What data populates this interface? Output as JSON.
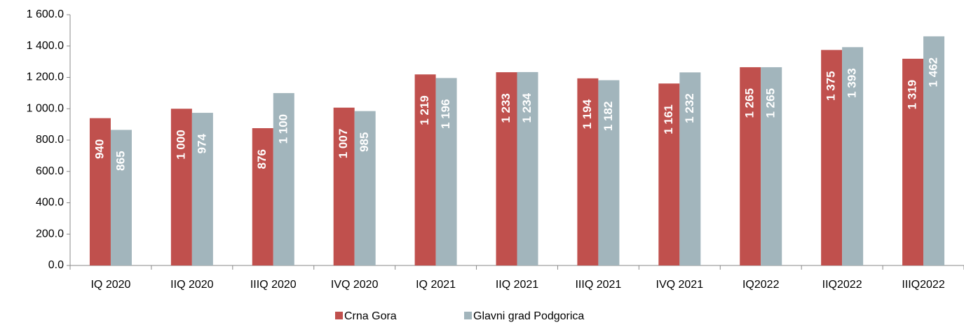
{
  "chart_data": {
    "type": "bar",
    "categories": [
      "IQ 2020",
      "IIQ 2020",
      "IIIQ 2020",
      "IVQ 2020",
      "IQ 2021",
      "IIQ 2021",
      "IIIQ 2021",
      "IVQ 2021",
      "IQ2022",
      "IIQ2022",
      "IIIQ2022"
    ],
    "series": [
      {
        "name": "Crna Gora",
        "color": "#c0504d",
        "values": [
          940,
          1000,
          876,
          1007,
          1219,
          1233,
          1194,
          1161,
          1265,
          1375,
          1319
        ],
        "value_labels": [
          "940",
          "1 000",
          "876",
          "1 007",
          "1 219",
          "1 233",
          "1 194",
          "1 161",
          "1 265",
          "1 375",
          "1 319"
        ]
      },
      {
        "name": "Glavni grad Podgorica",
        "color": "#a2b5bc",
        "values": [
          865,
          974,
          1100,
          985,
          1196,
          1234,
          1182,
          1232,
          1265,
          1393,
          1462
        ],
        "value_labels": [
          "865",
          "974",
          "1 100",
          "985",
          "1 196",
          "1 234",
          "1 182",
          "1 232",
          "1 265",
          "1 393",
          "1 462"
        ]
      }
    ],
    "ylim": [
      0,
      1600
    ],
    "yticks": [
      {
        "value": 0,
        "label": "0.0"
      },
      {
        "value": 200,
        "label": "200.0"
      },
      {
        "value": 400,
        "label": "400.0"
      },
      {
        "value": 600,
        "label": "600.0"
      },
      {
        "value": 800,
        "label": "800.0"
      },
      {
        "value": 1000,
        "label": "1 000.0"
      },
      {
        "value": 1200,
        "label": "1 200.0"
      },
      {
        "value": 1400,
        "label": "1 400.0"
      },
      {
        "value": 1600,
        "label": "1 600.0"
      }
    ],
    "grid": false,
    "legend": "bottom"
  }
}
